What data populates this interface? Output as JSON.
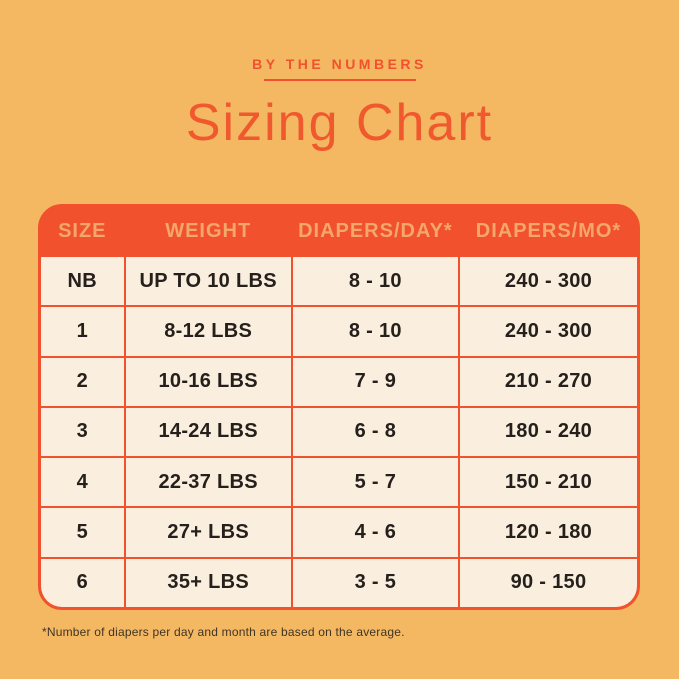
{
  "chart_data": {
    "type": "table",
    "subtitle": "BY THE NUMBERS",
    "title": "Sizing Chart",
    "columns": [
      "SIZE",
      "WEIGHT",
      "DIAPERS/DAY*",
      "DIAPERS/MO*"
    ],
    "rows": [
      [
        "NB",
        "UP TO 10 LBS",
        "8 - 10",
        "240 - 300"
      ],
      [
        "1",
        "8-12 LBS",
        "8 - 10",
        "240 - 300"
      ],
      [
        "2",
        "10-16 LBS",
        "7 - 9",
        "210 - 270"
      ],
      [
        "3",
        "14-24 LBS",
        "6 - 8",
        "180 - 240"
      ],
      [
        "4",
        "22-37 LBS",
        "5 - 7",
        "150 - 210"
      ],
      [
        "5",
        "27+ LBS",
        "4 - 6",
        "120 - 180"
      ],
      [
        "6",
        "35+ LBS",
        "3 - 5",
        "90 - 150"
      ]
    ],
    "footnote": "*Number of diapers per day and month are based on the average.",
    "layout": {
      "header_position": "top",
      "grid": "on",
      "header_underline": true
    }
  },
  "colors": {
    "page_background": "#F4B862",
    "accent_orange_red": "#F1522D",
    "title_text": "#F0582E",
    "header_text_peach": "#F3A76B",
    "cell_background_cream": "#FAEFDF",
    "cell_text_dark": "#25201B",
    "footnote_text": "#3F3525"
  }
}
